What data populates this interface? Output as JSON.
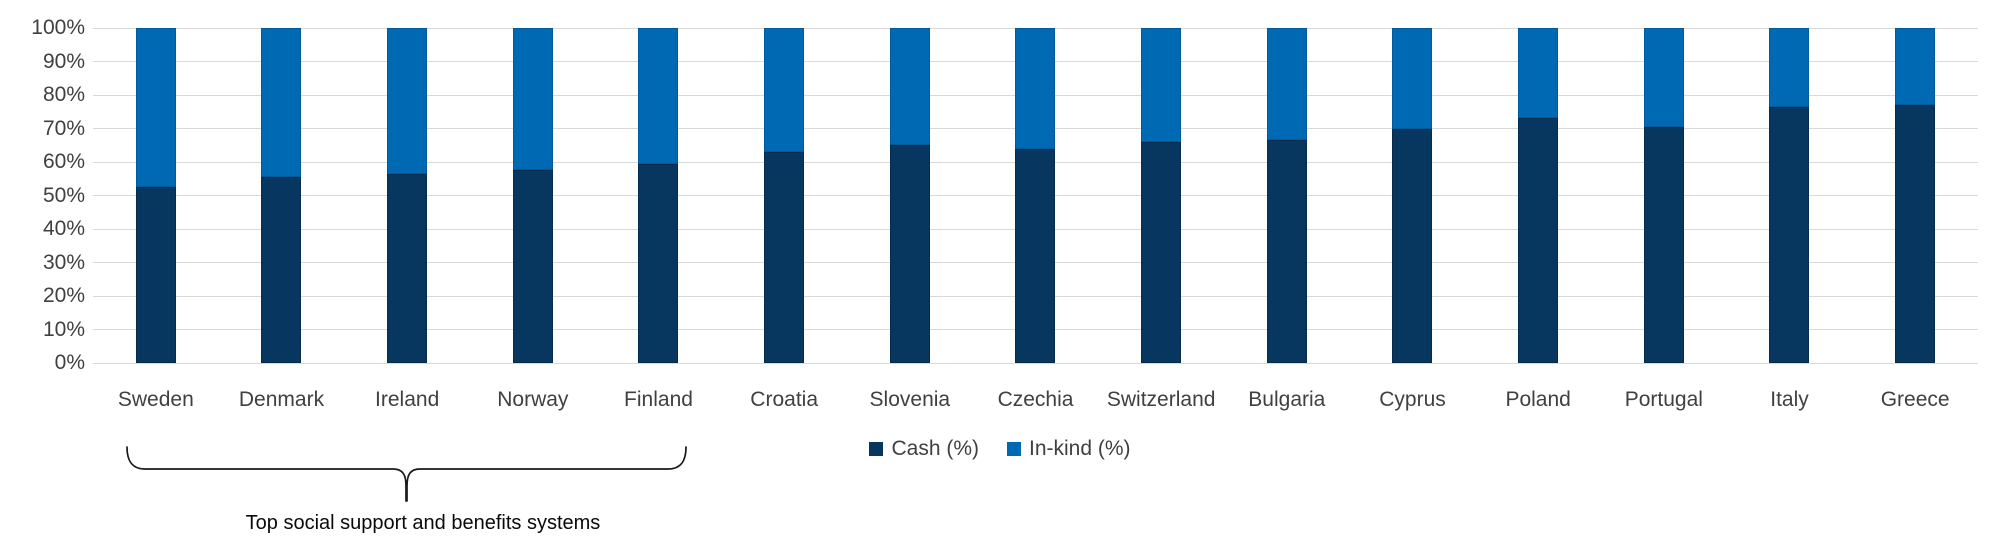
{
  "chart_data": {
    "type": "bar",
    "stacked": true,
    "stacked_total": 100,
    "title": "",
    "xlabel": "",
    "ylabel": "",
    "ylim": [
      0,
      100
    ],
    "y_ticks": [
      "0%",
      "10%",
      "20%",
      "30%",
      "40%",
      "50%",
      "60%",
      "70%",
      "80%",
      "90%",
      "100%"
    ],
    "grid": "horizontal",
    "legend_position": "bottom-center",
    "categories": [
      "Sweden",
      "Denmark",
      "Ireland",
      "Norway",
      "Finland",
      "Croatia",
      "Slovenia",
      "Czechia",
      "Switzerland",
      "Bulgaria",
      "Cyprus",
      "Poland",
      "Portugal",
      "Italy",
      "Greece"
    ],
    "series": [
      {
        "name": "Cash (%)",
        "color": "#07375f",
        "values": [
          52.5,
          55.5,
          56.5,
          57.5,
          59.5,
          63,
          65,
          64,
          66,
          66.5,
          70,
          73,
          70.5,
          76.5,
          77
        ]
      },
      {
        "name": "In-kind (%)",
        "color": "#0069b4",
        "values": [
          47.5,
          44.5,
          43.5,
          42.5,
          40.5,
          37,
          35,
          36,
          34,
          33.5,
          30,
          27,
          29.5,
          23.5,
          23
        ]
      }
    ]
  },
  "annotation": {
    "bracket_label": "Top social support and benefits systems",
    "bracket_categories": [
      "Sweden",
      "Denmark",
      "Ireland",
      "Norway",
      "Finland"
    ]
  },
  "colors": {
    "cash": "#07375f",
    "inkind": "#0069b4",
    "gridline": "#d9d9d9",
    "axis_text": "#404040",
    "annotation": "#1a1a1a",
    "background": "#ffffff"
  }
}
